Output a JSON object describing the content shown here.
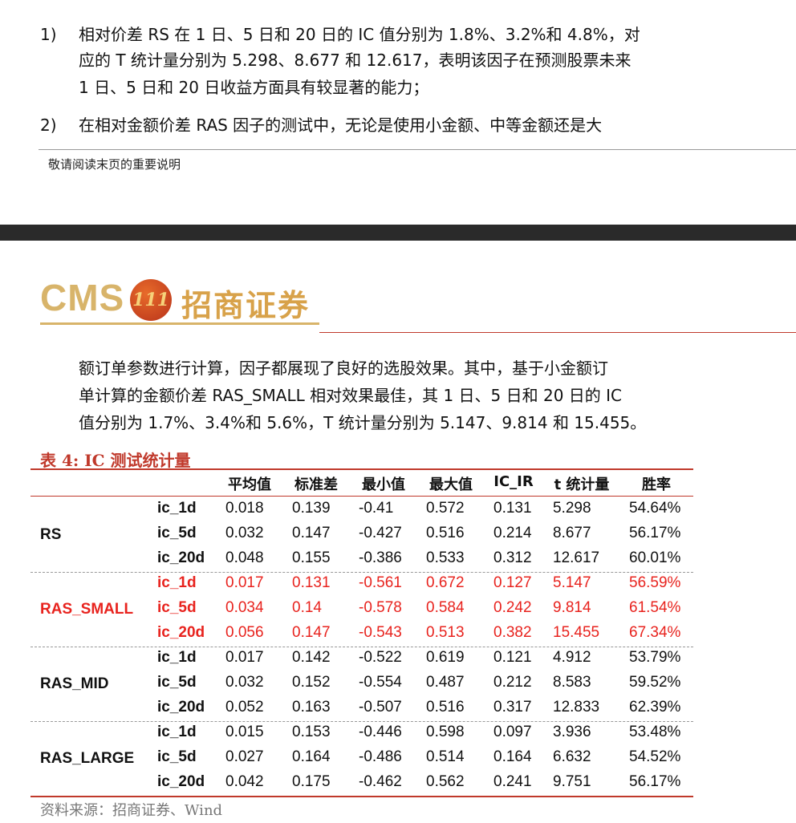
{
  "top": {
    "items": [
      {
        "num": "1)",
        "lines": [
          "相对价差 RS 在 1 日、5 日和 20 日的 IC 值分别为 1.8%、3.2%和 4.8%，对",
          "应的 T 统计量分别为 5.298、8.677 和 12.617，表明该因子在预测股票未来",
          "1 日、5 日和 20 日收益方面具有较显著的能力；"
        ]
      },
      {
        "num": "2)",
        "lines": [
          "在相对金额价差 RAS 因子的测试中，无论是使用小金额、中等金额还是大"
        ]
      }
    ],
    "footer_note": "敬请阅读末页的重要说明"
  },
  "logo": {
    "latin": "CMS",
    "badge": "111",
    "cn": "招商证券"
  },
  "paragraph": [
    "额订单参数进行计算，因子都展现了良好的选股效果。其中，基于小金额订",
    "单计算的金额价差 RAS_SMALL 相对效果最佳，其 1 日、5 日和 20 日的 IC",
    "值分别为 1.7%、3.4%和 5.6%，T 统计量分别为 5.147、9.814 和 15.455。"
  ],
  "table": {
    "title": "表 4:  IC 测试统计量",
    "headers": [
      "平均值",
      "标准差",
      "最小值",
      "最大值",
      "IC_IR",
      "t 统计量",
      "胜率"
    ],
    "groups": [
      {
        "name": "RS",
        "highlight": false,
        "rows": [
          {
            "label": "ic_1d",
            "values": [
              "0.018",
              "0.139",
              "-0.41",
              "0.572",
              "0.131",
              "5.298",
              "54.64%"
            ]
          },
          {
            "label": "ic_5d",
            "values": [
              "0.032",
              "0.147",
              "-0.427",
              "0.516",
              "0.214",
              "8.677",
              "56.17%"
            ]
          },
          {
            "label": "ic_20d",
            "values": [
              "0.048",
              "0.155",
              "-0.386",
              "0.533",
              "0.312",
              "12.617",
              "60.01%"
            ]
          }
        ]
      },
      {
        "name": "RAS_SMALL",
        "highlight": true,
        "rows": [
          {
            "label": "ic_1d",
            "values": [
              "0.017",
              "0.131",
              "-0.561",
              "0.672",
              "0.127",
              "5.147",
              "56.59%"
            ]
          },
          {
            "label": "ic_5d",
            "values": [
              "0.034",
              "0.14",
              "-0.578",
              "0.584",
              "0.242",
              "9.814",
              "61.54%"
            ]
          },
          {
            "label": "ic_20d",
            "values": [
              "0.056",
              "0.147",
              "-0.543",
              "0.513",
              "0.382",
              "15.455",
              "67.34%"
            ]
          }
        ]
      },
      {
        "name": "RAS_MID",
        "highlight": false,
        "rows": [
          {
            "label": "ic_1d",
            "values": [
              "0.017",
              "0.142",
              "-0.522",
              "0.619",
              "0.121",
              "4.912",
              "53.79%"
            ]
          },
          {
            "label": "ic_5d",
            "values": [
              "0.032",
              "0.152",
              "-0.554",
              "0.487",
              "0.212",
              "8.583",
              "59.52%"
            ]
          },
          {
            "label": "ic_20d",
            "values": [
              "0.052",
              "0.163",
              "-0.507",
              "0.516",
              "0.317",
              "12.833",
              "62.39%"
            ]
          }
        ]
      },
      {
        "name": "RAS_LARGE",
        "highlight": false,
        "rows": [
          {
            "label": "ic_1d",
            "values": [
              "0.015",
              "0.153",
              "-0.446",
              "0.598",
              "0.097",
              "3.936",
              "53.48%"
            ]
          },
          {
            "label": "ic_5d",
            "values": [
              "0.027",
              "0.164",
              "-0.486",
              "0.514",
              "0.164",
              "6.632",
              "54.52%"
            ]
          },
          {
            "label": "ic_20d",
            "values": [
              "0.042",
              "0.175",
              "-0.462",
              "0.562",
              "0.241",
              "9.751",
              "56.17%"
            ]
          }
        ]
      }
    ],
    "source": "资料来源：招商证券、Wind"
  },
  "colors": {
    "accent_red": "#e8231e",
    "rule_red": "#c0392b",
    "gold": "#d8b46a"
  }
}
